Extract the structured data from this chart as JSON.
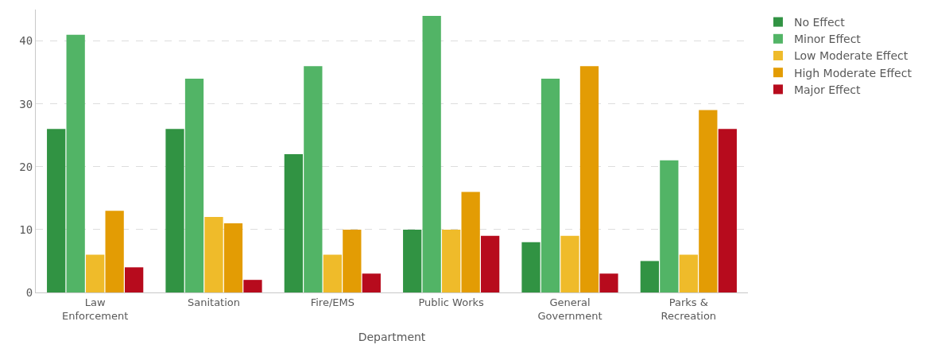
{
  "chart_data": {
    "type": "bar",
    "xlabel": "Department",
    "categories": [
      "Law\nEnforcement",
      "Sanitation",
      "Fire/EMS",
      "Public Works",
      "General\nGovernment",
      "Parks &\nRecreation"
    ],
    "series": [
      {
        "name": "No Effect",
        "color": "#319343",
        "values": [
          26,
          26,
          22,
          10,
          8,
          5
        ]
      },
      {
        "name": "Minor Effect",
        "color": "#52b466",
        "values": [
          41,
          34,
          36,
          44,
          34,
          21
        ]
      },
      {
        "name": "Low Moderate Effect",
        "color": "#efbb2a",
        "values": [
          6,
          12,
          6,
          10,
          9,
          6
        ]
      },
      {
        "name": "High Moderate Effect",
        "color": "#e39c04",
        "values": [
          13,
          11,
          10,
          16,
          36,
          29
        ]
      },
      {
        "name": "Major Effect",
        "color": "#b70b1d",
        "values": [
          4,
          2,
          3,
          9,
          3,
          26
        ]
      }
    ],
    "ylim": [
      0,
      45
    ],
    "yticks": [
      0,
      10,
      20,
      30,
      40
    ],
    "grid": "y",
    "legend": "top right"
  }
}
